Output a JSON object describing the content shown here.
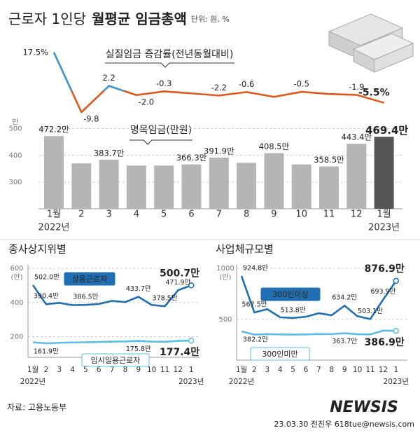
{
  "title": "근로자 1인당",
  "title_bold": "월평균 임금총액",
  "unit_note": "단위: 원, %",
  "source": "자료: 고용노동부",
  "credit": "23.03.30 전진우 618tue@newsis.com",
  "watermark": "NEWSIS",
  "chart_data": [
    {
      "type": "line",
      "title": "실질임금 증감률(전년동월대비)",
      "values": [
        17.5,
        -9.8,
        2.2,
        -2.0,
        -0.3,
        -1.2,
        -2.2,
        -0.6,
        -2.8,
        -0.5,
        -1.5,
        -1.9,
        -5.5
      ],
      "value_labels": [
        "17.5%",
        "-9.8",
        "2.2",
        "-2.0",
        "-0.3",
        null,
        "-2.2",
        "-0.6",
        null,
        "-0.5",
        null,
        "-1.9",
        "-5.5%"
      ],
      "ylim": [
        -12,
        20
      ],
      "color": "#e0561b",
      "positive_color": "#3b9bd8"
    },
    {
      "type": "bar",
      "title": "명목임금(만원)",
      "categories": [
        "1월",
        "2",
        "3",
        "4",
        "5",
        "6",
        "7",
        "8",
        "9",
        "10",
        "11",
        "12",
        "1월"
      ],
      "category_sublabels": [
        "2022년",
        null,
        null,
        null,
        null,
        null,
        null,
        null,
        null,
        null,
        null,
        null,
        "2023년"
      ],
      "values": [
        472.2,
        370,
        383.7,
        362,
        362,
        366.3,
        391.9,
        372,
        408.5,
        366,
        358.5,
        443.4,
        469.4
      ],
      "value_labels": [
        "472.2만",
        null,
        "383.7만",
        null,
        null,
        "366.3만",
        "391.9만",
        null,
        "408.5만",
        null,
        "358.5만",
        "443.4만",
        "469.4만"
      ],
      "colors": [
        "#b5b5b5",
        "#b5b5b5",
        "#b5b5b5",
        "#b5b5b5",
        "#b5b5b5",
        "#b5b5b5",
        "#b5b5b5",
        "#b5b5b5",
        "#b5b5b5",
        "#b5b5b5",
        "#b5b5b5",
        "#b5b5b5",
        "#555555"
      ],
      "ylim": [
        200,
        520
      ],
      "yticks": [
        300,
        400,
        500
      ],
      "y_unit": "만",
      "grid": true
    },
    {
      "type": "line",
      "title": "종사상지위별",
      "categories": [
        "1월",
        "2",
        "3",
        "4",
        "5",
        "6",
        "7",
        "8",
        "9",
        "10",
        "11",
        "12",
        "1"
      ],
      "category_sublabels": [
        "2022년",
        null,
        null,
        null,
        null,
        null,
        null,
        null,
        null,
        null,
        null,
        null,
        "2023년"
      ],
      "ylim": [
        80,
        600
      ],
      "yticks": [
        200,
        400,
        600
      ],
      "y_unit": "(만)",
      "grid": true,
      "series": [
        {
          "name": "상용근로자",
          "color": "#1f6fb2",
          "values": [
            502.0,
            390.4,
            398,
            385,
            386.5,
            392,
            410,
            403,
            433.7,
            386,
            378.5,
            471.9,
            500.7
          ],
          "value_labels": [
            "502.0만",
            "390.4만",
            null,
            null,
            "386.5만",
            null,
            null,
            null,
            "433.7만",
            null,
            "378.5만",
            "471.9만",
            "500.7만"
          ]
        },
        {
          "name": "임시일용근로자",
          "color": "#5bbde4",
          "values": [
            168,
            161.9,
            165,
            167,
            168,
            170,
            172,
            173,
            175.8,
            172,
            171,
            176,
            177.4
          ],
          "value_labels": [
            null,
            "161.9만",
            null,
            null,
            null,
            null,
            null,
            null,
            "175.8만",
            null,
            null,
            null,
            "177.4만"
          ]
        }
      ]
    },
    {
      "type": "line",
      "title": "사업체규모별",
      "categories": [
        "1월",
        "2",
        "3",
        "4",
        "5",
        "6",
        "7",
        "8",
        "9",
        "10",
        "11",
        "12",
        "1"
      ],
      "category_sublabels": [
        "2022년",
        null,
        null,
        null,
        null,
        null,
        null,
        null,
        null,
        null,
        null,
        null,
        "2023년"
      ],
      "ylim": [
        100,
        1000
      ],
      "yticks": [
        500,
        1000
      ],
      "y_unit": "(만)",
      "grid": true,
      "series": [
        {
          "name": "300인이상",
          "color": "#1f6fb2",
          "values": [
            924.8,
            567.5,
            600,
            520,
            513.8,
            525,
            560,
            540,
            634.2,
            530,
            503.1,
            693.9,
            876.9
          ],
          "value_labels": [
            "924.8만",
            "567.5만",
            null,
            null,
            "513.8만",
            null,
            null,
            null,
            "634.2만",
            null,
            "503.1만",
            "693.9만",
            "876.9만"
          ]
        },
        {
          "name": "300인미만",
          "color": "#5bbde4",
          "values": [
            382.2,
            350,
            355,
            352,
            350,
            352,
            356,
            355,
            363.7,
            354,
            352,
            390,
            386.9
          ],
          "value_labels": [
            "382.2만",
            null,
            null,
            null,
            null,
            null,
            null,
            null,
            "363.7만",
            null,
            null,
            null,
            "386.9만"
          ]
        }
      ]
    }
  ]
}
